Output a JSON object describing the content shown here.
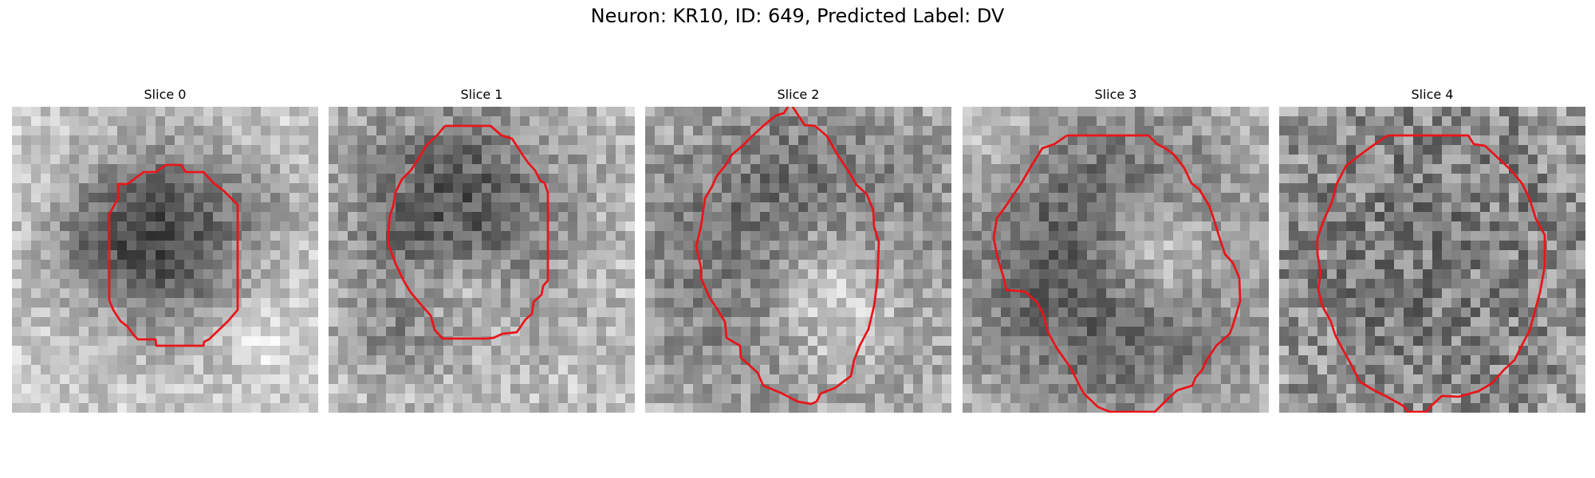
{
  "figure": {
    "title": "Neuron: KR10, ID: 649, Predicted Label: DV"
  },
  "colors": {
    "contour": "#e8161b",
    "background": "#ffffff",
    "text": "#000000"
  },
  "image_grid": {
    "size": 32,
    "colormap": "gray"
  },
  "panels": [
    {
      "title": "Slice 0",
      "content": "grayscale-neuron-slice-with-red-roi-contour"
    },
    {
      "title": "Slice 1",
      "content": "grayscale-neuron-slice-with-red-roi-contour"
    },
    {
      "title": "Slice 2",
      "content": "grayscale-neuron-slice-with-red-roi-contour"
    },
    {
      "title": "Slice 3",
      "content": "grayscale-neuron-slice-with-red-roi-contour"
    },
    {
      "title": "Slice 4",
      "content": "grayscale-neuron-slice-with-red-roi-contour"
    }
  ]
}
